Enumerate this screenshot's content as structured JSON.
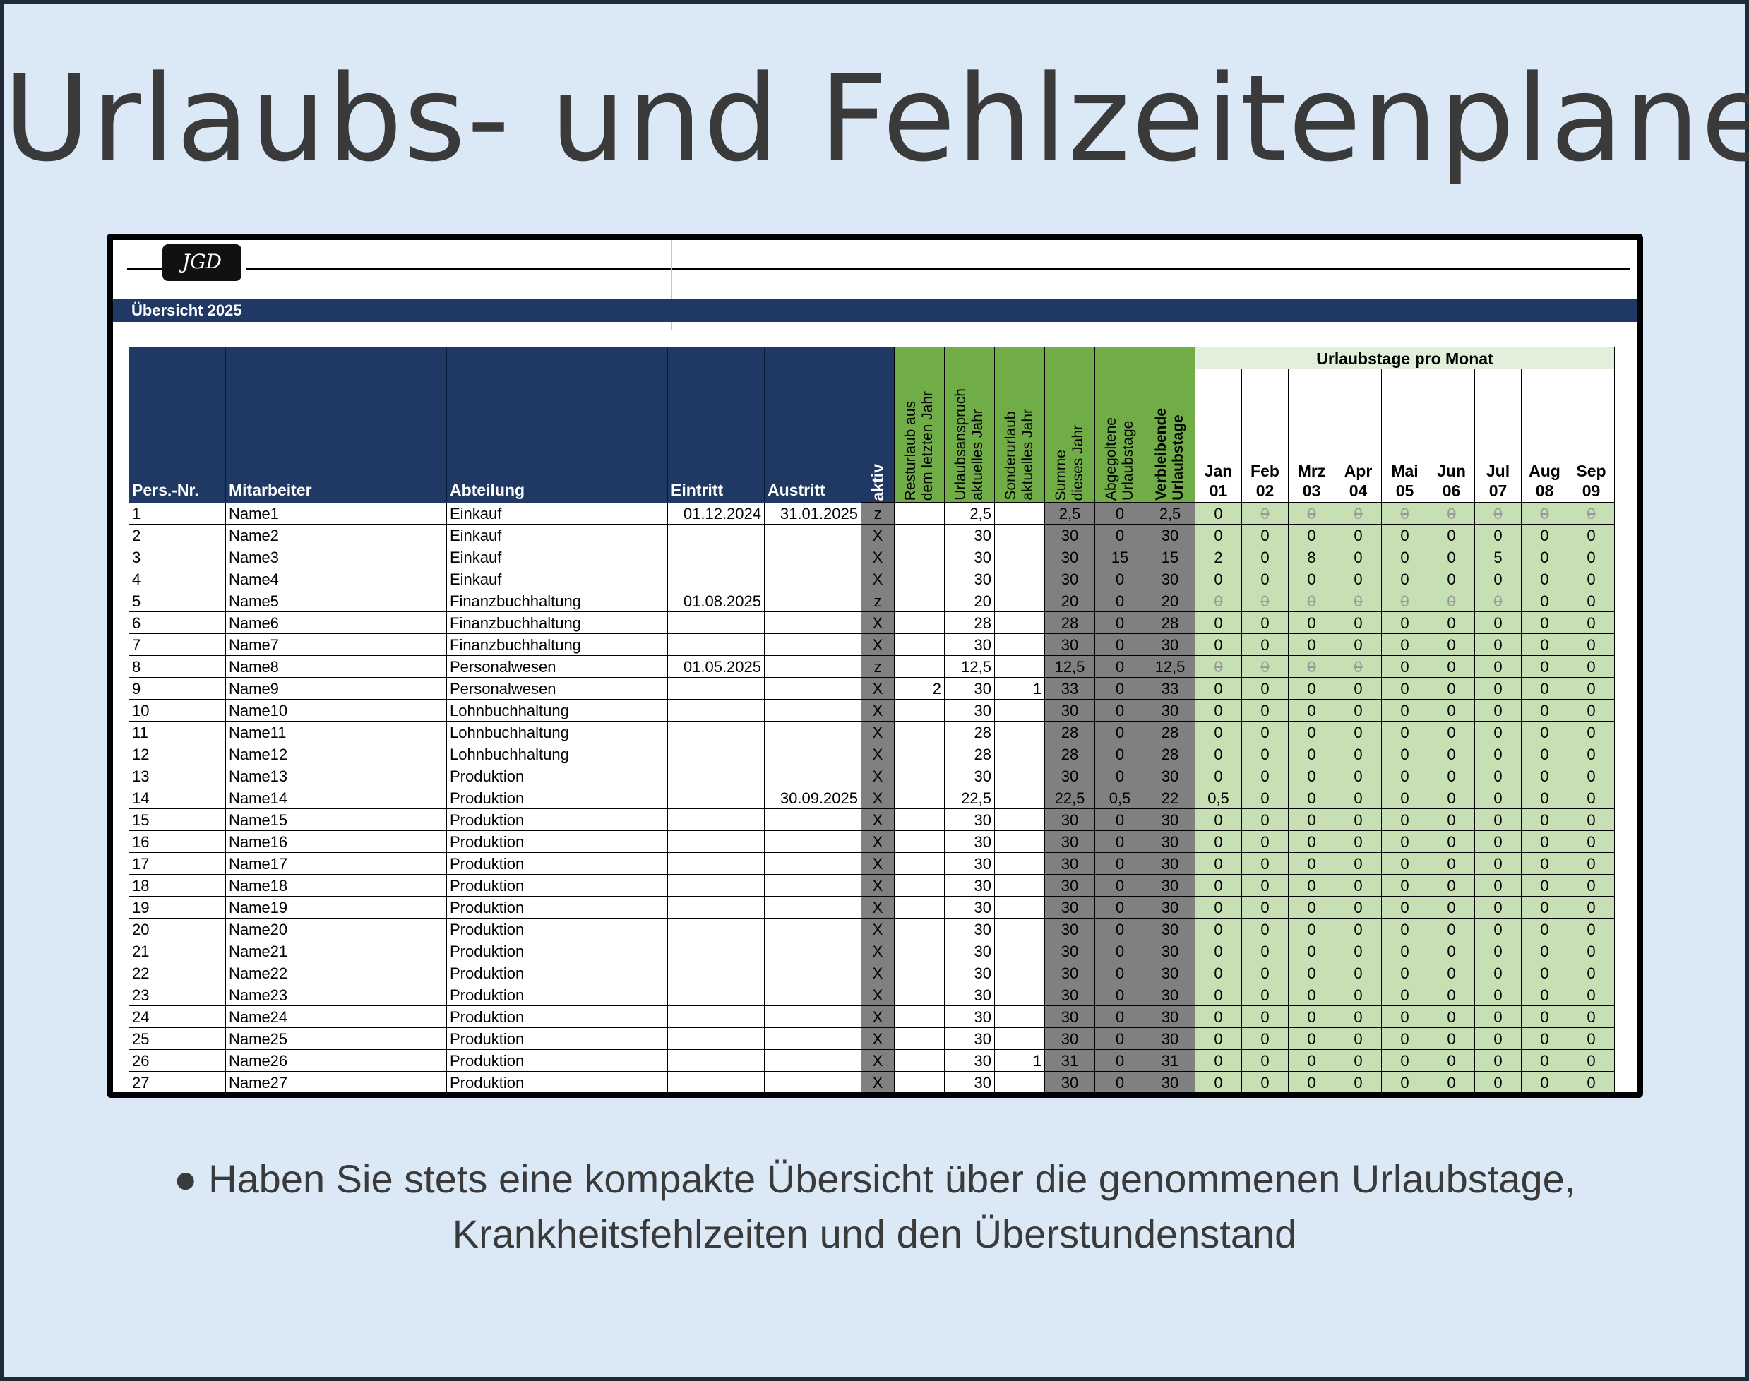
{
  "page": {
    "title": "Urlaubs- und Fehlzeitenplaner",
    "caption_line1": "● Haben Sie stets eine kompakte Übersicht über die genommenen Urlaubstage,",
    "caption_line2": "Krankheitsfehlzeiten und den Überstundenstand"
  },
  "sheet": {
    "logo": "JGD",
    "title": "Übersicht 2025",
    "headers": {
      "pers_nr": "Pers.-Nr.",
      "mitarbeiter": "Mitarbeiter",
      "abteilung": "Abteilung",
      "eintritt": "Eintritt",
      "austritt": "Austritt",
      "aktiv": "aktiv",
      "resturlaub": "Resturlaub aus\ndem letzten Jahr",
      "urlaubsanspruch": "Urlaubsanspruch\naktuelles Jahr",
      "sonderurlaub": "Sonderurlaub\naktuelles Jahr",
      "summe": "Summe\ndieses Jahr",
      "abgegolten": "Abgegoltene\nUrlaubstage",
      "verbleibend": "Verbleibende\nUrlaubstage",
      "monat_group": "Urlaubstage pro Monat"
    },
    "months": [
      {
        "name": "Jan",
        "num": "01"
      },
      {
        "name": "Feb",
        "num": "02"
      },
      {
        "name": "Mrz",
        "num": "03"
      },
      {
        "name": "Apr",
        "num": "04"
      },
      {
        "name": "Mai",
        "num": "05"
      },
      {
        "name": "Jun",
        "num": "06"
      },
      {
        "name": "Jul",
        "num": "07"
      },
      {
        "name": "Aug",
        "num": "08"
      },
      {
        "name": "Sep",
        "num": "09"
      }
    ],
    "rows": [
      {
        "nr": "1",
        "name": "Name1",
        "abt": "Einkauf",
        "ein": "01.12.2024",
        "aus": "31.01.2025",
        "akt": "z",
        "rest": "",
        "ansp": "2,5",
        "sond": "",
        "sum": "2,5",
        "abg": "0",
        "verb": "2,5",
        "m": [
          "0",
          "0",
          "0",
          "0",
          "0",
          "0",
          "0",
          "0",
          "0"
        ],
        "na": [
          1,
          2,
          3,
          4,
          5,
          6,
          7,
          8
        ]
      },
      {
        "nr": "2",
        "name": "Name2",
        "abt": "Einkauf",
        "ein": "",
        "aus": "",
        "akt": "X",
        "rest": "",
        "ansp": "30",
        "sond": "",
        "sum": "30",
        "abg": "0",
        "verb": "30",
        "m": [
          "0",
          "0",
          "0",
          "0",
          "0",
          "0",
          "0",
          "0",
          "0"
        ],
        "na": []
      },
      {
        "nr": "3",
        "name": "Name3",
        "abt": "Einkauf",
        "ein": "",
        "aus": "",
        "akt": "X",
        "rest": "",
        "ansp": "30",
        "sond": "",
        "sum": "30",
        "abg": "15",
        "verb": "15",
        "m": [
          "2",
          "0",
          "8",
          "0",
          "0",
          "0",
          "5",
          "0",
          "0"
        ],
        "na": []
      },
      {
        "nr": "4",
        "name": "Name4",
        "abt": "Einkauf",
        "ein": "",
        "aus": "",
        "akt": "X",
        "rest": "",
        "ansp": "30",
        "sond": "",
        "sum": "30",
        "abg": "0",
        "verb": "30",
        "m": [
          "0",
          "0",
          "0",
          "0",
          "0",
          "0",
          "0",
          "0",
          "0"
        ],
        "na": []
      },
      {
        "nr": "5",
        "name": "Name5",
        "abt": "Finanzbuchhaltung",
        "ein": "01.08.2025",
        "aus": "",
        "akt": "z",
        "rest": "",
        "ansp": "20",
        "sond": "",
        "sum": "20",
        "abg": "0",
        "verb": "20",
        "m": [
          "0",
          "0",
          "0",
          "0",
          "0",
          "0",
          "0",
          "0",
          "0"
        ],
        "na": [
          0,
          1,
          2,
          3,
          4,
          5,
          6
        ]
      },
      {
        "nr": "6",
        "name": "Name6",
        "abt": "Finanzbuchhaltung",
        "ein": "",
        "aus": "",
        "akt": "X",
        "rest": "",
        "ansp": "28",
        "sond": "",
        "sum": "28",
        "abg": "0",
        "verb": "28",
        "m": [
          "0",
          "0",
          "0",
          "0",
          "0",
          "0",
          "0",
          "0",
          "0"
        ],
        "na": []
      },
      {
        "nr": "7",
        "name": "Name7",
        "abt": "Finanzbuchhaltung",
        "ein": "",
        "aus": "",
        "akt": "X",
        "rest": "",
        "ansp": "30",
        "sond": "",
        "sum": "30",
        "abg": "0",
        "verb": "30",
        "m": [
          "0",
          "0",
          "0",
          "0",
          "0",
          "0",
          "0",
          "0",
          "0"
        ],
        "na": []
      },
      {
        "nr": "8",
        "name": "Name8",
        "abt": "Personalwesen",
        "ein": "01.05.2025",
        "aus": "",
        "akt": "z",
        "rest": "",
        "ansp": "12,5",
        "sond": "",
        "sum": "12,5",
        "abg": "0",
        "verb": "12,5",
        "m": [
          "0",
          "0",
          "0",
          "0",
          "0",
          "0",
          "0",
          "0",
          "0"
        ],
        "na": [
          0,
          1,
          2,
          3
        ]
      },
      {
        "nr": "9",
        "name": "Name9",
        "abt": "Personalwesen",
        "ein": "",
        "aus": "",
        "akt": "X",
        "rest": "2",
        "ansp": "30",
        "sond": "1",
        "sum": "33",
        "abg": "0",
        "verb": "33",
        "m": [
          "0",
          "0",
          "0",
          "0",
          "0",
          "0",
          "0",
          "0",
          "0"
        ],
        "na": []
      },
      {
        "nr": "10",
        "name": "Name10",
        "abt": "Lohnbuchhaltung",
        "ein": "",
        "aus": "",
        "akt": "X",
        "rest": "",
        "ansp": "30",
        "sond": "",
        "sum": "30",
        "abg": "0",
        "verb": "30",
        "m": [
          "0",
          "0",
          "0",
          "0",
          "0",
          "0",
          "0",
          "0",
          "0"
        ],
        "na": []
      },
      {
        "nr": "11",
        "name": "Name11",
        "abt": "Lohnbuchhaltung",
        "ein": "",
        "aus": "",
        "akt": "X",
        "rest": "",
        "ansp": "28",
        "sond": "",
        "sum": "28",
        "abg": "0",
        "verb": "28",
        "m": [
          "0",
          "0",
          "0",
          "0",
          "0",
          "0",
          "0",
          "0",
          "0"
        ],
        "na": []
      },
      {
        "nr": "12",
        "name": "Name12",
        "abt": "Lohnbuchhaltung",
        "ein": "",
        "aus": "",
        "akt": "X",
        "rest": "",
        "ansp": "28",
        "sond": "",
        "sum": "28",
        "abg": "0",
        "verb": "28",
        "m": [
          "0",
          "0",
          "0",
          "0",
          "0",
          "0",
          "0",
          "0",
          "0"
        ],
        "na": []
      },
      {
        "nr": "13",
        "name": "Name13",
        "abt": "Produktion",
        "ein": "",
        "aus": "",
        "akt": "X",
        "rest": "",
        "ansp": "30",
        "sond": "",
        "sum": "30",
        "abg": "0",
        "verb": "30",
        "m": [
          "0",
          "0",
          "0",
          "0",
          "0",
          "0",
          "0",
          "0",
          "0"
        ],
        "na": []
      },
      {
        "nr": "14",
        "name": "Name14",
        "abt": "Produktion",
        "ein": "",
        "aus": "30.09.2025",
        "akt": "X",
        "rest": "",
        "ansp": "22,5",
        "sond": "",
        "sum": "22,5",
        "abg": "0,5",
        "verb": "22",
        "m": [
          "0,5",
          "0",
          "0",
          "0",
          "0",
          "0",
          "0",
          "0",
          "0"
        ],
        "na": []
      },
      {
        "nr": "15",
        "name": "Name15",
        "abt": "Produktion",
        "ein": "",
        "aus": "",
        "akt": "X",
        "rest": "",
        "ansp": "30",
        "sond": "",
        "sum": "30",
        "abg": "0",
        "verb": "30",
        "m": [
          "0",
          "0",
          "0",
          "0",
          "0",
          "0",
          "0",
          "0",
          "0"
        ],
        "na": []
      },
      {
        "nr": "16",
        "name": "Name16",
        "abt": "Produktion",
        "ein": "",
        "aus": "",
        "akt": "X",
        "rest": "",
        "ansp": "30",
        "sond": "",
        "sum": "30",
        "abg": "0",
        "verb": "30",
        "m": [
          "0",
          "0",
          "0",
          "0",
          "0",
          "0",
          "0",
          "0",
          "0"
        ],
        "na": []
      },
      {
        "nr": "17",
        "name": "Name17",
        "abt": "Produktion",
        "ein": "",
        "aus": "",
        "akt": "X",
        "rest": "",
        "ansp": "30",
        "sond": "",
        "sum": "30",
        "abg": "0",
        "verb": "30",
        "m": [
          "0",
          "0",
          "0",
          "0",
          "0",
          "0",
          "0",
          "0",
          "0"
        ],
        "na": []
      },
      {
        "nr": "18",
        "name": "Name18",
        "abt": "Produktion",
        "ein": "",
        "aus": "",
        "akt": "X",
        "rest": "",
        "ansp": "30",
        "sond": "",
        "sum": "30",
        "abg": "0",
        "verb": "30",
        "m": [
          "0",
          "0",
          "0",
          "0",
          "0",
          "0",
          "0",
          "0",
          "0"
        ],
        "na": []
      },
      {
        "nr": "19",
        "name": "Name19",
        "abt": "Produktion",
        "ein": "",
        "aus": "",
        "akt": "X",
        "rest": "",
        "ansp": "30",
        "sond": "",
        "sum": "30",
        "abg": "0",
        "verb": "30",
        "m": [
          "0",
          "0",
          "0",
          "0",
          "0",
          "0",
          "0",
          "0",
          "0"
        ],
        "na": []
      },
      {
        "nr": "20",
        "name": "Name20",
        "abt": "Produktion",
        "ein": "",
        "aus": "",
        "akt": "X",
        "rest": "",
        "ansp": "30",
        "sond": "",
        "sum": "30",
        "abg": "0",
        "verb": "30",
        "m": [
          "0",
          "0",
          "0",
          "0",
          "0",
          "0",
          "0",
          "0",
          "0"
        ],
        "na": []
      },
      {
        "nr": "21",
        "name": "Name21",
        "abt": "Produktion",
        "ein": "",
        "aus": "",
        "akt": "X",
        "rest": "",
        "ansp": "30",
        "sond": "",
        "sum": "30",
        "abg": "0",
        "verb": "30",
        "m": [
          "0",
          "0",
          "0",
          "0",
          "0",
          "0",
          "0",
          "0",
          "0"
        ],
        "na": []
      },
      {
        "nr": "22",
        "name": "Name22",
        "abt": "Produktion",
        "ein": "",
        "aus": "",
        "akt": "X",
        "rest": "",
        "ansp": "30",
        "sond": "",
        "sum": "30",
        "abg": "0",
        "verb": "30",
        "m": [
          "0",
          "0",
          "0",
          "0",
          "0",
          "0",
          "0",
          "0",
          "0"
        ],
        "na": []
      },
      {
        "nr": "23",
        "name": "Name23",
        "abt": "Produktion",
        "ein": "",
        "aus": "",
        "akt": "X",
        "rest": "",
        "ansp": "30",
        "sond": "",
        "sum": "30",
        "abg": "0",
        "verb": "30",
        "m": [
          "0",
          "0",
          "0",
          "0",
          "0",
          "0",
          "0",
          "0",
          "0"
        ],
        "na": []
      },
      {
        "nr": "24",
        "name": "Name24",
        "abt": "Produktion",
        "ein": "",
        "aus": "",
        "akt": "X",
        "rest": "",
        "ansp": "30",
        "sond": "",
        "sum": "30",
        "abg": "0",
        "verb": "30",
        "m": [
          "0",
          "0",
          "0",
          "0",
          "0",
          "0",
          "0",
          "0",
          "0"
        ],
        "na": []
      },
      {
        "nr": "25",
        "name": "Name25",
        "abt": "Produktion",
        "ein": "",
        "aus": "",
        "akt": "X",
        "rest": "",
        "ansp": "30",
        "sond": "",
        "sum": "30",
        "abg": "0",
        "verb": "30",
        "m": [
          "0",
          "0",
          "0",
          "0",
          "0",
          "0",
          "0",
          "0",
          "0"
        ],
        "na": []
      },
      {
        "nr": "26",
        "name": "Name26",
        "abt": "Produktion",
        "ein": "",
        "aus": "",
        "akt": "X",
        "rest": "",
        "ansp": "30",
        "sond": "1",
        "sum": "31",
        "abg": "0",
        "verb": "31",
        "m": [
          "0",
          "0",
          "0",
          "0",
          "0",
          "0",
          "0",
          "0",
          "0"
        ],
        "na": []
      },
      {
        "nr": "27",
        "name": "Name27",
        "abt": "Produktion",
        "ein": "",
        "aus": "",
        "akt": "X",
        "rest": "",
        "ansp": "30",
        "sond": "",
        "sum": "30",
        "abg": "0",
        "verb": "30",
        "m": [
          "0",
          "0",
          "0",
          "0",
          "0",
          "0",
          "0",
          "0",
          "0"
        ],
        "na": []
      }
    ]
  }
}
